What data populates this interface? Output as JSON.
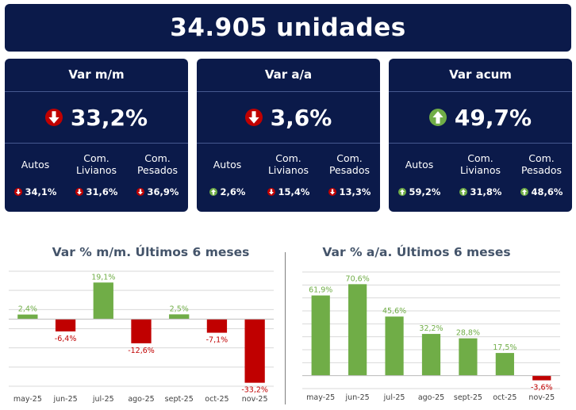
{
  "headline": "34.905 unidades",
  "colors": {
    "navy": "#0b1a4a",
    "up": "#70ad47",
    "down": "#c00000",
    "axis_text": "#404040",
    "title_text": "#44546a"
  },
  "cards": [
    {
      "title": "Var m/m",
      "main": {
        "value": "33,2%",
        "direction": "down"
      },
      "subs": [
        {
          "label": "Autos",
          "value": "34,1%",
          "direction": "down"
        },
        {
          "label": "Com. Livianos",
          "value": "31,6%",
          "direction": "down"
        },
        {
          "label": "Com. Pesados",
          "value": "36,9%",
          "direction": "down"
        }
      ]
    },
    {
      "title": "Var a/a",
      "main": {
        "value": "3,6%",
        "direction": "down"
      },
      "subs": [
        {
          "label": "Autos",
          "value": "2,6%",
          "direction": "up"
        },
        {
          "label": "Com. Livianos",
          "value": "15,4%",
          "direction": "down"
        },
        {
          "label": "Com. Pesados",
          "value": "13,3%",
          "direction": "down"
        }
      ]
    },
    {
      "title": "Var acum",
      "main": {
        "value": "49,7%",
        "direction": "up"
      },
      "subs": [
        {
          "label": "Autos",
          "value": "59,2%",
          "direction": "up"
        },
        {
          "label": "Com. Livianos",
          "value": "31,8%",
          "direction": "up"
        },
        {
          "label": "Com. Pesados",
          "value": "48,6%",
          "direction": "up"
        }
      ]
    }
  ],
  "chart_data": [
    {
      "type": "bar",
      "title": "Var % m/m. Últimos 6 meses",
      "categories": [
        "may-25",
        "jun-25",
        "jul-25",
        "ago-25",
        "sept-25",
        "oct-25",
        "nov-25"
      ],
      "values": [
        2.4,
        -6.4,
        19.1,
        -12.6,
        2.5,
        -7.1,
        -33.2
      ],
      "labels": [
        "2,4%",
        "-6,4%",
        "19,1%",
        "-12,6%",
        "2,5%",
        "-7,1%",
        "-33,2%"
      ],
      "ylim": [
        -35,
        25
      ],
      "grid": true,
      "xlabel": "",
      "ylabel": ""
    },
    {
      "type": "bar",
      "title": "Var % a/a. Últimos 6 meses",
      "categories": [
        "may-25",
        "jun-25",
        "jul-25",
        "ago-25",
        "sept-25",
        "oct-25",
        "nov-25"
      ],
      "values": [
        61.9,
        70.6,
        45.6,
        32.2,
        28.8,
        17.5,
        -3.6
      ],
      "labels": [
        "61,9%",
        "70,6%",
        "45,6%",
        "32,2%",
        "28,8%",
        "17,5%",
        "-3,6%"
      ],
      "ylim": [
        -10,
        80
      ],
      "grid": true,
      "xlabel": "",
      "ylabel": ""
    }
  ]
}
